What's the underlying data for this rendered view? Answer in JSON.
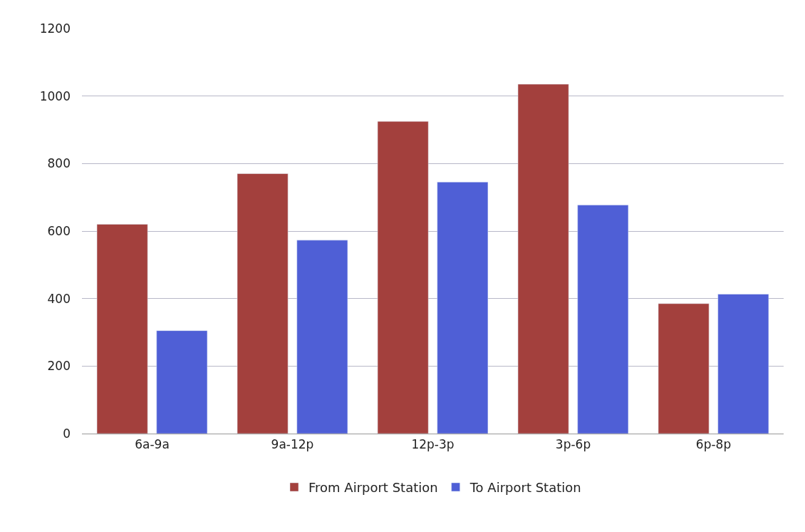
{
  "chart_data": {
    "type": "bar",
    "categories": [
      "6a-9a",
      "9a-12p",
      "12p-3p",
      "3p-6p",
      "6p-8p"
    ],
    "series": [
      {
        "name": "From Airport Station",
        "color": "#a3403d",
        "values": [
          620,
          770,
          925,
          1035,
          385
        ]
      },
      {
        "name": "To Airport Station",
        "color": "#4f5fd6",
        "values": [
          305,
          573,
          745,
          677,
          413
        ]
      }
    ],
    "ylim": [
      0,
      1200
    ],
    "yticks": [
      0,
      200,
      400,
      600,
      800,
      1000,
      1200
    ],
    "grid": "y",
    "legend": "bottom"
  }
}
